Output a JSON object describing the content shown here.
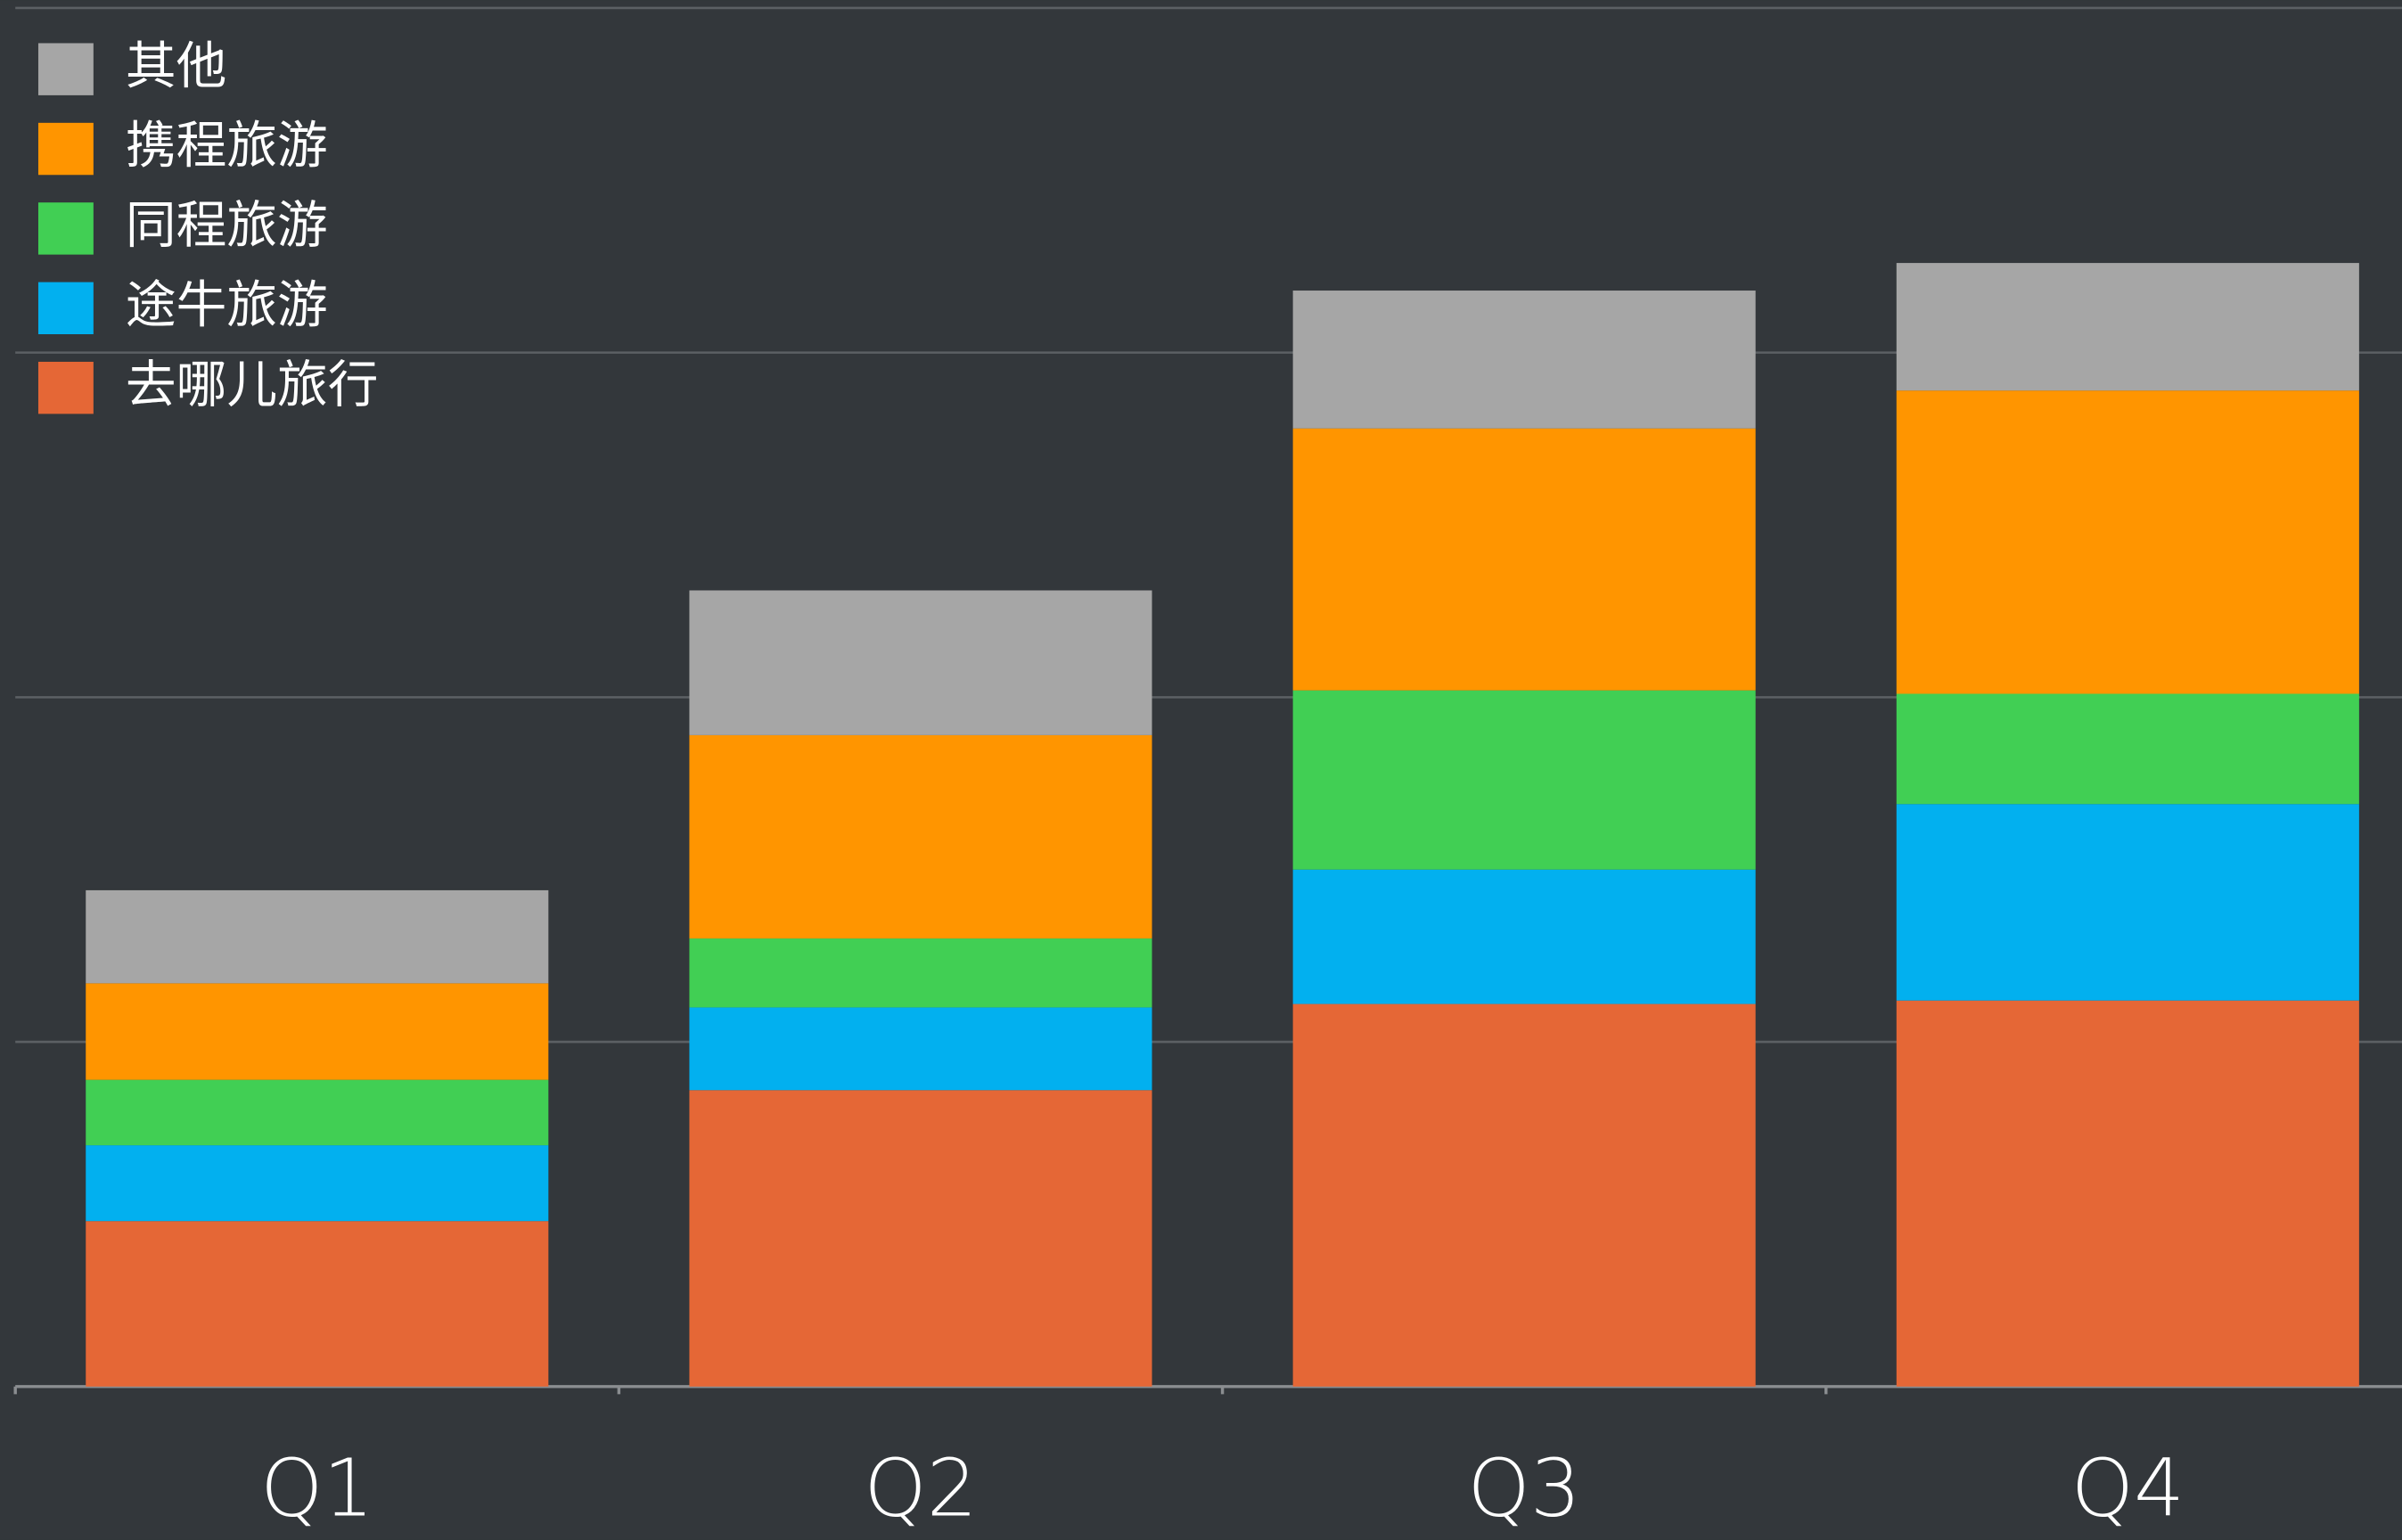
{
  "chart_data": {
    "type": "stacked_bar",
    "categories": [
      "Q1",
      "Q2",
      "Q3",
      "Q4"
    ],
    "series": [
      {
        "name": "去哪儿旅行",
        "color": "#e56736",
        "values": [
          0.48,
          0.86,
          1.11,
          1.12
        ]
      },
      {
        "name": "途牛旅游",
        "color": "#02b0ef",
        "values": [
          0.22,
          0.24,
          0.39,
          0.57
        ]
      },
      {
        "name": "同程旅游",
        "color": "#41cf54",
        "values": [
          0.19,
          0.2,
          0.52,
          0.32
        ]
      },
      {
        "name": "携程旅游",
        "color": "#ff9500",
        "values": [
          0.28,
          0.59,
          0.76,
          0.88
        ]
      },
      {
        "name": "其他",
        "color": "#a6a6a6",
        "values": [
          0.27,
          0.42,
          0.4,
          0.37
        ]
      }
    ],
    "ylim": [
      0,
      4
    ],
    "yticks": [
      0,
      1,
      2,
      3,
      4
    ],
    "grid": true,
    "legend": "top-left"
  }
}
